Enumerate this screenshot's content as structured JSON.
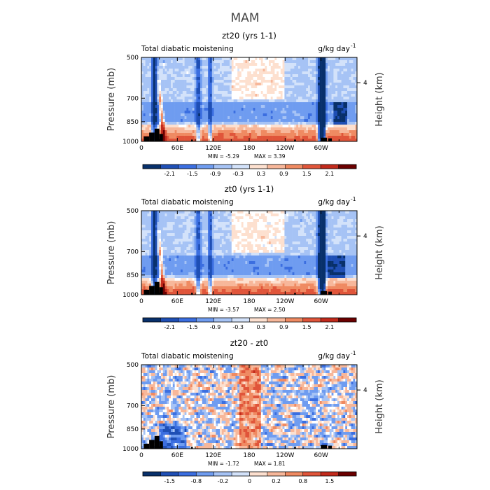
{
  "figure_title": "MAM",
  "colors": {
    "negative": [
      "#08306b",
      "#1f4fb5",
      "#3b6ee0",
      "#6f9cf0",
      "#a6c3f5",
      "#d3e2fa"
    ],
    "neutral": "#ffffff",
    "positive": [
      "#fde0cf",
      "#f7b79a",
      "#ef8a62",
      "#e0553a",
      "#c22a1c",
      "#6b0000"
    ],
    "topography": "#000000"
  },
  "chart_data": [
    {
      "type": "heatmap",
      "panel_title": "zt20 (yrs 1-1)",
      "left_label": "Total diabatic moistening",
      "right_label": "g/kg day",
      "right_label_exp": "-1",
      "xlabel": "",
      "ylabel": "Pressure  (mb)",
      "y2label": "Height  (km)",
      "x_ticks": [
        "0",
        "60E",
        "120E",
        "180",
        "120W",
        "60W"
      ],
      "x_tick_lon": [
        0,
        60,
        120,
        180,
        240,
        300
      ],
      "xlim": [
        0,
        360
      ],
      "y_ticks": [
        "500",
        "700",
        "850",
        "1000"
      ],
      "y_tick_p": [
        500,
        700,
        850,
        1000
      ],
      "ylim": [
        1000,
        500
      ],
      "y2_ticks": [
        "4"
      ],
      "y2_tick_p": [
        616
      ],
      "min_text": "MIN =   -5.29",
      "max_text": "MAX =    3.39",
      "colorbar_labels": [
        "-2.1",
        "-1.5",
        "-0.9",
        "-0.3",
        "0.3",
        "0.9",
        "1.5",
        "2.1"
      ],
      "field_min": -5.29,
      "field_max": 3.39,
      "seed": 11
    },
    {
      "type": "heatmap",
      "panel_title": "zt0 (yrs 1-1)",
      "left_label": "Total diabatic moistening",
      "right_label": "g/kg day",
      "right_label_exp": "-1",
      "xlabel": "",
      "ylabel": "Pressure  (mb)",
      "y2label": "Height  (km)",
      "x_ticks": [
        "0",
        "60E",
        "120E",
        "180",
        "120W",
        "60W"
      ],
      "x_tick_lon": [
        0,
        60,
        120,
        180,
        240,
        300
      ],
      "xlim": [
        0,
        360
      ],
      "y_ticks": [
        "500",
        "700",
        "850",
        "1000"
      ],
      "y_tick_p": [
        500,
        700,
        850,
        1000
      ],
      "ylim": [
        1000,
        500
      ],
      "y2_ticks": [
        "4"
      ],
      "y2_tick_p": [
        616
      ],
      "min_text": "MIN =   -3.57",
      "max_text": "MAX =    2.50",
      "colorbar_labels": [
        "-2.1",
        "-1.5",
        "-0.9",
        "-0.3",
        "0.3",
        "0.9",
        "1.5",
        "2.1"
      ],
      "field_min": -3.57,
      "field_max": 2.5,
      "seed": 23
    },
    {
      "type": "heatmap",
      "panel_title": "zt20 - zt0",
      "left_label": "Total diabatic moistening",
      "right_label": "g/kg day",
      "right_label_exp": "-1",
      "xlabel": "",
      "ylabel": "Pressure  (mb)",
      "y2label": "Height  (km)",
      "x_ticks": [
        "0",
        "60E",
        "120E",
        "180",
        "120W",
        "60W"
      ],
      "x_tick_lon": [
        0,
        60,
        120,
        180,
        240,
        300
      ],
      "xlim": [
        0,
        360
      ],
      "y_ticks": [
        "500",
        "700",
        "850",
        "1000"
      ],
      "y_tick_p": [
        500,
        700,
        850,
        1000
      ],
      "ylim": [
        1000,
        500
      ],
      "y2_ticks": [
        "4"
      ],
      "y2_tick_p": [
        616
      ],
      "min_text": "MIN =   -1.72",
      "max_text": "MAX =    1.81",
      "colorbar_labels": [
        "-1.5",
        "-0.8",
        "-0.2",
        "0",
        "0.2",
        "0.8",
        "1.5"
      ],
      "field_min": -1.72,
      "field_max": 1.81,
      "seed": 37
    }
  ]
}
